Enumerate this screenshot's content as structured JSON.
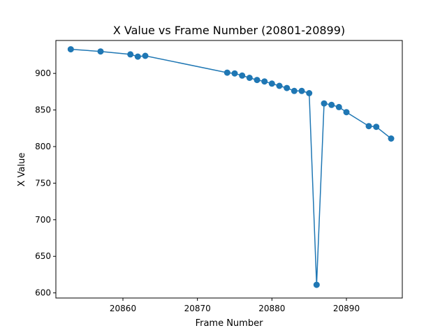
{
  "chart_data": {
    "type": "line",
    "title": "X Value vs Frame Number (20801-20899)",
    "xlabel": "Frame Number",
    "ylabel": "X Value",
    "xlim": [
      20851,
      20897.5
    ],
    "ylim": [
      593,
      945
    ],
    "xticks": [
      20860,
      20870,
      20880,
      20890
    ],
    "yticks": [
      600,
      650,
      700,
      750,
      800,
      850,
      900
    ],
    "grid": false,
    "series_color": "#1f77b4",
    "series": [
      {
        "x": [
          20853,
          20857,
          20861,
          20862,
          20863,
          20874,
          20875,
          20876,
          20877,
          20878,
          20879,
          20880,
          20881,
          20882,
          20883,
          20884,
          20885,
          20886,
          20887,
          20888,
          20889,
          20890,
          20893,
          20894,
          20896
        ],
        "y": [
          933,
          930,
          926,
          923,
          924,
          901,
          900,
          897,
          894,
          891,
          889,
          886,
          883,
          880,
          876,
          876,
          873,
          611,
          859,
          857,
          854,
          847,
          828,
          827,
          811
        ]
      }
    ]
  }
}
